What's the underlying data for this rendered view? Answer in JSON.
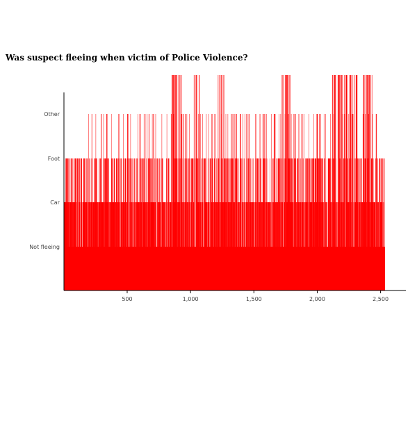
{
  "chart_data": {
    "type": "bar",
    "title": "Was suspect fleeing when victim of Police Violence?",
    "xlabel": "",
    "ylabel": "",
    "categories": [
      "Not fleeing",
      "Car",
      "Foot",
      "Other"
    ],
    "xlim": [
      1,
      2535
    ],
    "x_ticks": [
      {
        "value": 500,
        "label": "500"
      },
      {
        "value": 1000,
        "label": "1,000"
      },
      {
        "value": 1500,
        "label": "1,500"
      },
      {
        "value": 2000,
        "label": "2,000"
      },
      {
        "value": 2500,
        "label": "2,500"
      }
    ],
    "bar_color": "#ff0000",
    "series": [
      {
        "segments": [
          {
            "x0": 1,
            "x1": 2535,
            "level": "Not fleeing"
          },
          {
            "x0": 5,
            "x1": 2535,
            "level": "Car",
            "density": 0.55
          },
          {
            "x0": 15,
            "x1": 2535,
            "level": "Foot",
            "density": 0.22
          },
          {
            "x0": 190,
            "x1": 2470,
            "level": "Other",
            "density": 0.06
          }
        ]
      }
    ]
  }
}
